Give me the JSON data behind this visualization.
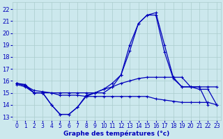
{
  "xlabel": "Graphe des températures (°c)",
  "bg_color": "#cce8ed",
  "grid_color": "#aacccc",
  "line_color": "#0000bb",
  "x_ticks": [
    0,
    1,
    2,
    3,
    4,
    5,
    6,
    7,
    8,
    9,
    10,
    11,
    12,
    13,
    14,
    15,
    16,
    17,
    18,
    19,
    20,
    21,
    22,
    23
  ],
  "y_ticks": [
    13,
    14,
    15,
    16,
    17,
    18,
    19,
    20,
    21,
    22
  ],
  "ylim": [
    12.7,
    22.6
  ],
  "xlim": [
    -0.5,
    23.5
  ],
  "series": [
    {
      "x": [
        0,
        1,
        2,
        3,
        4,
        5,
        6,
        7,
        8,
        9,
        10,
        11,
        12,
        13,
        14,
        15,
        16,
        17,
        18,
        19,
        20,
        21,
        22
      ],
      "y": [
        15.8,
        15.7,
        15.0,
        15.0,
        14.0,
        13.2,
        13.2,
        13.8,
        14.8,
        15.0,
        15.3,
        15.8,
        16.5,
        18.5,
        20.8,
        21.5,
        21.7,
        19.0,
        16.3,
        15.5,
        15.5,
        15.5,
        14.0
      ]
    },
    {
      "x": [
        0,
        1,
        2,
        3,
        4,
        5,
        6,
        7,
        8,
        9,
        10,
        11,
        12,
        13,
        14,
        15,
        16,
        17,
        18,
        19,
        20,
        21,
        22,
        23
      ],
      "y": [
        15.8,
        15.6,
        15.0,
        15.0,
        14.0,
        13.2,
        13.2,
        13.8,
        14.7,
        15.0,
        15.0,
        15.5,
        16.5,
        19.0,
        20.8,
        21.5,
        21.5,
        18.4,
        16.2,
        15.5,
        15.5,
        15.3,
        15.3,
        14.0
      ]
    },
    {
      "x": [
        0,
        1,
        2,
        3,
        4,
        5,
        6,
        7,
        8,
        9,
        10,
        11,
        12,
        13,
        14,
        15,
        16,
        17,
        18,
        19,
        20,
        21,
        22,
        23
      ],
      "y": [
        15.8,
        15.6,
        15.2,
        15.1,
        15.0,
        15.0,
        15.0,
        15.0,
        15.0,
        15.0,
        15.3,
        15.5,
        15.8,
        16.0,
        16.2,
        16.3,
        16.3,
        16.3,
        16.3,
        16.3,
        15.5,
        15.5,
        15.5,
        15.5
      ]
    },
    {
      "x": [
        0,
        1,
        2,
        3,
        4,
        5,
        6,
        7,
        8,
        9,
        10,
        11,
        12,
        13,
        14,
        15,
        16,
        17,
        18,
        19,
        20,
        21,
        22,
        23
      ],
      "y": [
        15.7,
        15.5,
        15.0,
        15.0,
        15.0,
        14.8,
        14.8,
        14.8,
        14.7,
        14.7,
        14.7,
        14.7,
        14.7,
        14.7,
        14.7,
        14.7,
        14.5,
        14.4,
        14.3,
        14.2,
        14.2,
        14.2,
        14.2,
        14.0
      ]
    }
  ]
}
